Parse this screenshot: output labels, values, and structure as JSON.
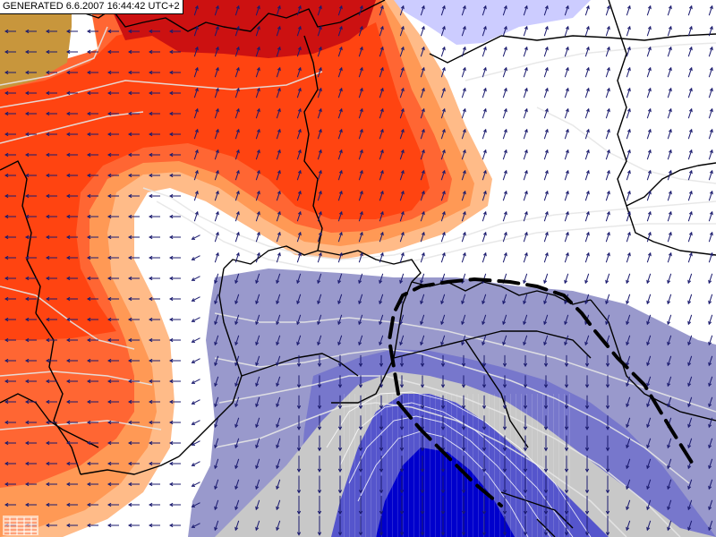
{
  "header": {
    "generated_stamp": "GENERATED 6.6.2007 16:44:42 UTC+2"
  },
  "map": {
    "type": "weather-forecast-map",
    "colors": {
      "background": "#ffffff",
      "warm_dark": "#cc1111",
      "warm": "#ff4411",
      "warm_mid": "#ff6633",
      "warm_light": "#ff9955",
      "warm_pale": "#ffbb88",
      "ochre": "#c8963c",
      "cool_light": "#ccccff",
      "cool": "#9999cc",
      "cool_mid": "#7777cc",
      "cool_dark": "#0000cc",
      "grey": "#c8c8c8",
      "border": "#000000",
      "isoline": "#e6e6e6",
      "wind_arrow": "#1a1a6e",
      "front": "#000000"
    },
    "layers": [
      "temperature-shading",
      "precipitation-shading",
      "isolines",
      "country-borders",
      "wind-arrows",
      "frontal-line"
    ]
  }
}
